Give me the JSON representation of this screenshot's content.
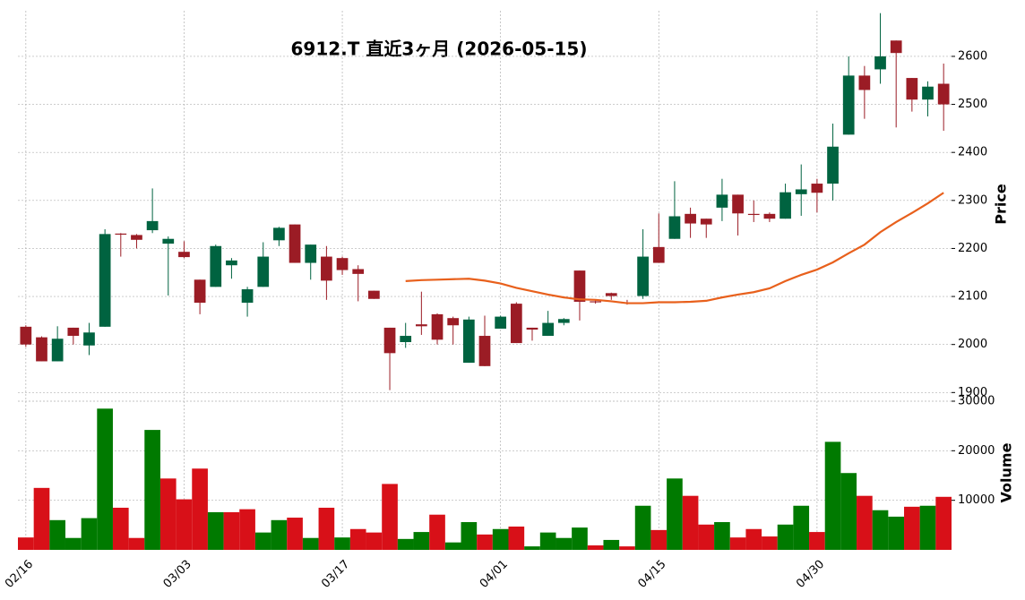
{
  "chart_data": {
    "type": "candlestick",
    "title": "6912.T  直近3ヶ月 (2026-05-15)",
    "categories": [
      "02/16",
      null,
      null,
      null,
      null,
      null,
      null,
      null,
      null,
      null,
      "03/03",
      null,
      null,
      null,
      null,
      null,
      null,
      null,
      null,
      null,
      "03/17",
      null,
      null,
      null,
      null,
      null,
      null,
      null,
      null,
      null,
      "04/01",
      null,
      null,
      null,
      null,
      null,
      null,
      null,
      null,
      null,
      "04/15",
      null,
      null,
      null,
      null,
      null,
      null,
      null,
      null,
      null,
      "04/30",
      null,
      null,
      null,
      null,
      null,
      null,
      null,
      null
    ],
    "open": [
      2037,
      2015,
      1965,
      2035,
      1998,
      2037,
      2231,
      2228,
      2238,
      2210,
      2193,
      2135,
      2120,
      2165,
      2087,
      2120,
      2217,
      2250,
      2170,
      2183,
      2180,
      2157,
      2112,
      2035,
      2005,
      2042,
      2063,
      2055,
      1962,
      2018,
      2033,
      2085,
      2035,
      2018,
      2045,
      2154,
      2090,
      2107,
      2088,
      2101,
      2203,
      2220,
      2272,
      2262,
      2285,
      2312,
      2272,
      2272,
      2262,
      2313,
      2335,
      2335,
      2437,
      2560,
      2573,
      2633,
      2555,
      2510,
      2543
    ],
    "high": [
      2040,
      2017,
      2038,
      2035,
      2045,
      2240,
      2232,
      2230,
      2325,
      2225,
      2215,
      2135,
      2208,
      2180,
      2120,
      2213,
      2245,
      2250,
      2208,
      2205,
      2183,
      2165,
      2112,
      2035,
      2045,
      2110,
      2065,
      2058,
      2058,
      2060,
      2060,
      2088,
      2035,
      2070,
      2055,
      2154,
      2093,
      2108,
      2093,
      2240,
      2273,
      2340,
      2285,
      2262,
      2345,
      2312,
      2300,
      2275,
      2335,
      2375,
      2345,
      2460,
      2600,
      2580,
      2690,
      2633,
      2555,
      2548,
      2585
    ],
    "low": [
      1995,
      1965,
      1965,
      2000,
      1978,
      2037,
      2183,
      2200,
      2232,
      2102,
      2180,
      2063,
      2120,
      2137,
      2058,
      2120,
      2205,
      2170,
      2135,
      2093,
      2145,
      2090,
      2095,
      1905,
      1993,
      2020,
      2000,
      2000,
      1962,
      1955,
      2033,
      2003,
      2008,
      2018,
      2040,
      2050,
      2085,
      2093,
      2083,
      2095,
      2170,
      2220,
      2222,
      2222,
      2257,
      2227,
      2255,
      2255,
      2262,
      2268,
      2275,
      2300,
      2437,
      2470,
      2543,
      2452,
      2485,
      2475,
      2445
    ],
    "close": [
      2000,
      1965,
      2012,
      2018,
      2025,
      2230,
      2229,
      2218,
      2257,
      2220,
      2182,
      2087,
      2205,
      2175,
      2115,
      2183,
      2243,
      2170,
      2208,
      2133,
      2155,
      2147,
      2095,
      1982,
      2018,
      2038,
      2010,
      2040,
      2052,
      1955,
      2058,
      2003,
      2031,
      2045,
      2053,
      2089,
      2088,
      2101,
      2087,
      2183,
      2170,
      2267,
      2252,
      2250,
      2312,
      2273,
      2270,
      2262,
      2317,
      2323,
      2316,
      2412,
      2560,
      2530,
      2600,
      2607,
      2510,
      2537,
      2500
    ],
    "up_color": "#006340",
    "down_color": "#9b1c25",
    "moving_average": {
      "color": "#e8601c",
      "values": [
        null,
        null,
        null,
        null,
        null,
        null,
        null,
        null,
        null,
        null,
        null,
        null,
        null,
        null,
        null,
        null,
        null,
        null,
        null,
        null,
        null,
        null,
        null,
        null,
        2132,
        2134,
        2135,
        2136,
        2137,
        2133,
        2127,
        2118,
        2111,
        2104,
        2098,
        2094,
        2093,
        2090,
        2086,
        2086,
        2088,
        2088,
        2089,
        2091,
        2098,
        2104,
        2109,
        2117,
        2132,
        2145,
        2156,
        2171,
        2190,
        2208,
        2234,
        2255,
        2274,
        2294,
        2316
      ]
    },
    "ylabel": "Price",
    "ylim": [
      1895,
      2695
    ],
    "yticks": [
      1900,
      2000,
      2100,
      2200,
      2300,
      2400,
      2500,
      2600
    ],
    "grid": true,
    "volume": {
      "ylabel": "Volume",
      "up_color": "#007a00",
      "down_color": "#d81018",
      "ylim": [
        0,
        30000
      ],
      "yticks": [
        10000,
        20000,
        30000
      ],
      "values": [
        2500,
        12500,
        6000,
        2400,
        6400,
        28500,
        8500,
        2400,
        24200,
        14400,
        10200,
        16400,
        7600,
        7600,
        8200,
        3500,
        6000,
        6500,
        2400,
        8500,
        2500,
        4200,
        3500,
        13300,
        2200,
        3600,
        7100,
        1500,
        5600,
        3100,
        4200,
        4700,
        700,
        3500,
        2400,
        4500,
        900,
        2000,
        700,
        8900,
        4000,
        14400,
        10900,
        5100,
        5600,
        2500,
        4200,
        2700,
        5100,
        8900,
        3600,
        21800,
        15500,
        10900,
        8000,
        6700,
        8700,
        8900,
        10700
      ]
    }
  }
}
